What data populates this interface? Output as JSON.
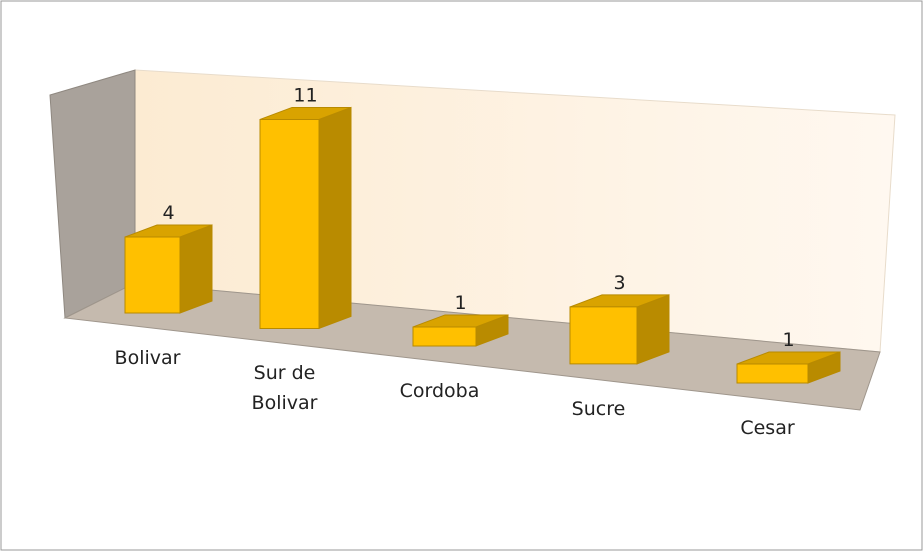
{
  "chart_data": {
    "type": "bar",
    "categories": [
      "Bolivar",
      "Sur de Bolivar",
      "Cordoba",
      "Sucre",
      "Cesar"
    ],
    "values": [
      4,
      11,
      1,
      3,
      1
    ],
    "color": "#FFC000"
  }
}
